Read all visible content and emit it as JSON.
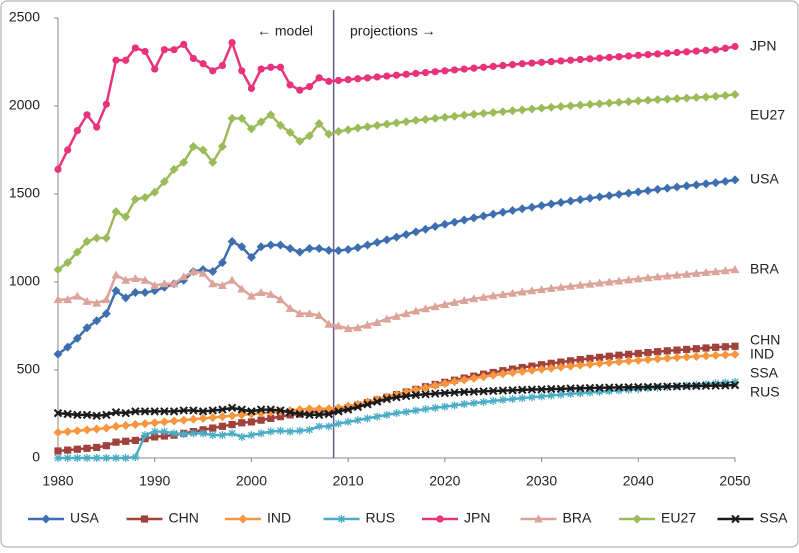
{
  "chart_data": {
    "type": "line",
    "annotations": [
      "← model",
      "projections →"
    ],
    "divider_x": 2008.5,
    "x": [
      1980,
      1981,
      1982,
      1983,
      1984,
      1985,
      1986,
      1987,
      1988,
      1989,
      1990,
      1991,
      1992,
      1993,
      1994,
      1995,
      1996,
      1997,
      1998,
      1999,
      2000,
      2001,
      2002,
      2003,
      2004,
      2005,
      2006,
      2007,
      2008,
      2009,
      2010,
      2011,
      2012,
      2013,
      2014,
      2015,
      2016,
      2017,
      2018,
      2019,
      2020,
      2021,
      2022,
      2023,
      2024,
      2025,
      2026,
      2027,
      2028,
      2029,
      2030,
      2031,
      2032,
      2033,
      2034,
      2035,
      2036,
      2037,
      2038,
      2039,
      2040,
      2041,
      2042,
      2043,
      2044,
      2045,
      2046,
      2047,
      2048,
      2049,
      2050
    ],
    "xlim": [
      1980,
      2050
    ],
    "xticks": [
      1980,
      1990,
      2000,
      2010,
      2020,
      2030,
      2040,
      2050
    ],
    "ylim": [
      0,
      2500
    ],
    "yticks": [
      0,
      500,
      1000,
      1500,
      2000,
      2500
    ],
    "grid": false,
    "legend": "bottom",
    "series": [
      {
        "name": "USA",
        "color": "#3d6fb0",
        "marker": "diamond",
        "values": [
          590,
          630,
          680,
          740,
          780,
          820,
          950,
          910,
          940,
          940,
          950,
          970,
          990,
          1010,
          1060,
          1070,
          1060,
          1110,
          1230,
          1200,
          1140,
          1200,
          1210,
          1210,
          1190,
          1170,
          1190,
          1190,
          1180,
          1178,
          1185,
          1195,
          1210,
          1225,
          1240,
          1255,
          1270,
          1285,
          1300,
          1315,
          1328,
          1340,
          1352,
          1364,
          1375,
          1386,
          1396,
          1406,
          1416,
          1425,
          1434,
          1443,
          1452,
          1460,
          1468,
          1476,
          1484,
          1491,
          1498,
          1505,
          1512,
          1519,
          1526,
          1533,
          1540,
          1546,
          1552,
          1558,
          1564,
          1572,
          1580
        ]
      },
      {
        "name": "CHN",
        "color": "#a0413b",
        "marker": "square",
        "values": [
          40,
          45,
          50,
          55,
          60,
          70,
          90,
          95,
          100,
          110,
          120,
          125,
          130,
          140,
          150,
          160,
          170,
          180,
          190,
          200,
          205,
          215,
          225,
          235,
          245,
          250,
          260,
          265,
          265,
          275,
          285,
          300,
          315,
          330,
          345,
          360,
          375,
          390,
          405,
          418,
          430,
          442,
          454,
          465,
          476,
          486,
          496,
          505,
          514,
          522,
          530,
          538,
          545,
          552,
          559,
          566,
          572,
          578,
          584,
          589,
          594,
          599,
          604,
          609,
          613,
          617,
          621,
          625,
          629,
          632,
          635
        ]
      },
      {
        "name": "IND",
        "color": "#f7963e",
        "marker": "diamond",
        "values": [
          145,
          150,
          155,
          160,
          165,
          170,
          180,
          185,
          190,
          195,
          200,
          205,
          210,
          215,
          220,
          225,
          230,
          235,
          240,
          245,
          250,
          255,
          260,
          265,
          270,
          275,
          280,
          280,
          280,
          285,
          295,
          305,
          318,
          332,
          346,
          360,
          374,
          388,
          400,
          412,
          423,
          434,
          444,
          453,
          462,
          470,
          478,
          485,
          492,
          498,
          504,
          510,
          516,
          522,
          527,
          532,
          537,
          542,
          547,
          551,
          555,
          559,
          563,
          567,
          571,
          574,
          577,
          580,
          583,
          586,
          589
        ]
      },
      {
        "name": "RUS",
        "color": "#4bacc6",
        "marker": "star",
        "values": [
          0,
          0,
          0,
          0,
          0,
          0,
          0,
          0,
          5,
          130,
          150,
          150,
          140,
          135,
          140,
          140,
          130,
          130,
          140,
          120,
          130,
          140,
          150,
          155,
          150,
          155,
          160,
          180,
          180,
          195,
          205,
          215,
          225,
          235,
          245,
          255,
          262,
          270,
          278,
          285,
          292,
          299,
          306,
          312,
          318,
          324,
          330,
          335,
          340,
          345,
          350,
          355,
          360,
          364,
          368,
          372,
          376,
          380,
          384,
          388,
          392,
          396,
          400,
          404,
          408,
          412,
          416,
          420,
          424,
          428,
          432
        ]
      },
      {
        "name": "JPN",
        "color": "#e8327c",
        "marker": "circle",
        "values": [
          1640,
          1750,
          1860,
          1950,
          1880,
          2010,
          2260,
          2260,
          2330,
          2310,
          2210,
          2320,
          2320,
          2350,
          2270,
          2240,
          2200,
          2230,
          2360,
          2200,
          2100,
          2210,
          2220,
          2220,
          2120,
          2090,
          2110,
          2160,
          2140,
          2145,
          2150,
          2155,
          2160,
          2165,
          2170,
          2175,
          2180,
          2185,
          2190,
          2195,
          2200,
          2205,
          2210,
          2215,
          2220,
          2225,
          2230,
          2235,
          2240,
          2244,
          2248,
          2252,
          2256,
          2260,
          2264,
          2268,
          2272,
          2276,
          2280,
          2284,
          2288,
          2292,
          2296,
          2300,
          2304,
          2308,
          2312,
          2316,
          2320,
          2328,
          2338
        ]
      },
      {
        "name": "BRA",
        "color": "#dba39a",
        "marker": "triangle",
        "values": [
          900,
          900,
          920,
          890,
          880,
          900,
          1040,
          1010,
          1020,
          1010,
          980,
          990,
          990,
          1030,
          1060,
          1050,
          990,
          980,
          1010,
          960,
          920,
          940,
          930,
          900,
          850,
          820,
          820,
          810,
          760,
          750,
          735,
          740,
          755,
          770,
          790,
          805,
          820,
          835,
          848,
          860,
          872,
          884,
          895,
          905,
          913,
          921,
          929,
          936,
          943,
          950,
          957,
          964,
          970,
          976,
          982,
          988,
          994,
          1000,
          1006,
          1012,
          1018,
          1024,
          1029,
          1034,
          1039,
          1044,
          1049,
          1054,
          1059,
          1064,
          1070
        ]
      },
      {
        "name": "EU27",
        "color": "#9bbb59",
        "marker": "diamond",
        "values": [
          1070,
          1110,
          1170,
          1230,
          1250,
          1250,
          1400,
          1370,
          1470,
          1480,
          1510,
          1570,
          1640,
          1680,
          1770,
          1750,
          1680,
          1770,
          1930,
          1930,
          1870,
          1910,
          1950,
          1890,
          1850,
          1800,
          1830,
          1900,
          1840,
          1855,
          1865,
          1875,
          1882,
          1890,
          1897,
          1904,
          1911,
          1918,
          1924,
          1930,
          1936,
          1942,
          1948,
          1953,
          1958,
          1963,
          1968,
          1973,
          1978,
          1983,
          1988,
          1993,
          1997,
          2001,
          2005,
          2009,
          2013,
          2017,
          2021,
          2025,
          2029,
          2033,
          2036,
          2039,
          2042,
          2045,
          2048,
          2051,
          2055,
          2060,
          2065
        ]
      },
      {
        "name": "SSA",
        "color": "#1a1a1a",
        "marker": "cross",
        "values": [
          255,
          250,
          245,
          245,
          240,
          245,
          260,
          255,
          265,
          265,
          265,
          265,
          265,
          270,
          270,
          265,
          270,
          275,
          285,
          275,
          265,
          275,
          275,
          270,
          260,
          250,
          245,
          245,
          250,
          265,
          275,
          290,
          305,
          320,
          335,
          345,
          352,
          358,
          362,
          366,
          369,
          372,
          375,
          377,
          379,
          381,
          383,
          385,
          387,
          389,
          390,
          392,
          393,
          395,
          396,
          398,
          399,
          400,
          401,
          402,
          403,
          404,
          405,
          406,
          407,
          408,
          409,
          410,
          411,
          412,
          414
        ]
      }
    ]
  }
}
